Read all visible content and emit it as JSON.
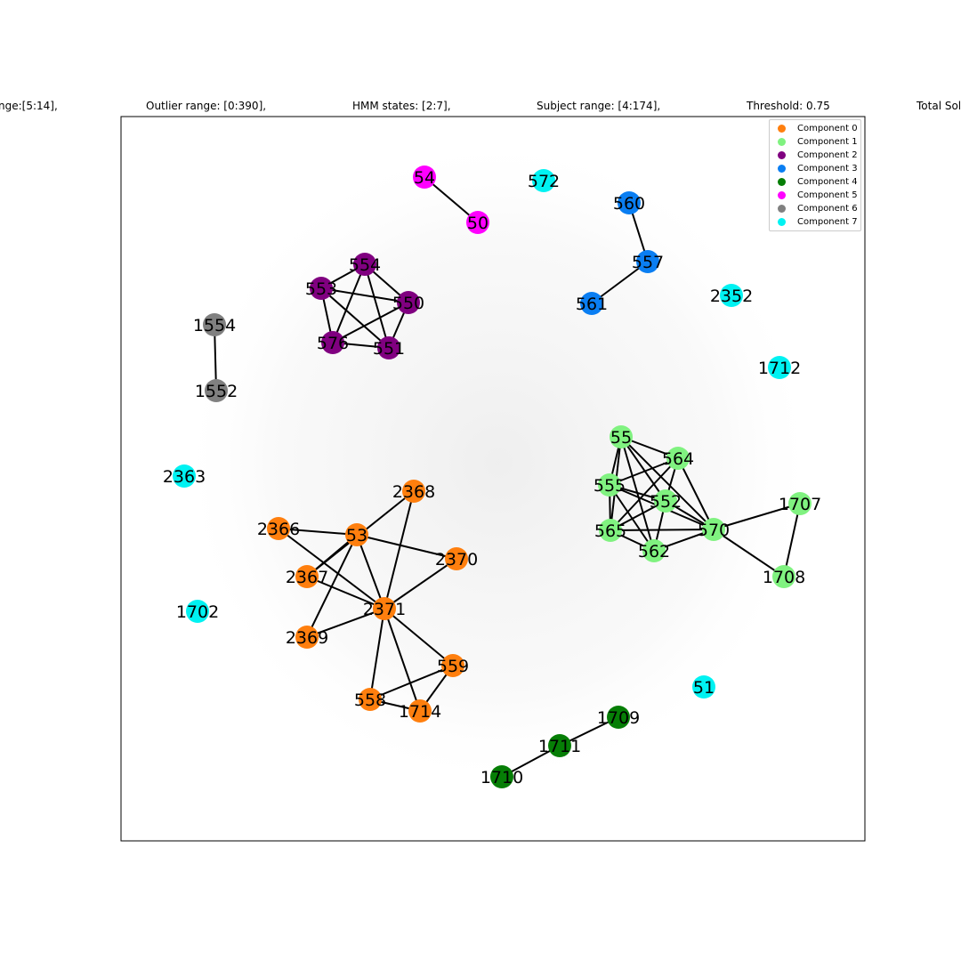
{
  "header": {
    "parts": [
      "nge:[5:14],",
      "Outlier range: [0:390],",
      "HMM states: [2:7],",
      "Subject range: [4:174],",
      "Threshold: 0.75",
      "Total Sol"
    ]
  },
  "legend": [
    {
      "label": "Component 0",
      "color": "#ff7f0e"
    },
    {
      "label": "Component 1",
      "color": "#80f280"
    },
    {
      "label": "Component 2",
      "color": "#800080"
    },
    {
      "label": "Component 3",
      "color": "#0a7ef2"
    },
    {
      "label": "Component 4",
      "color": "#067e06"
    },
    {
      "label": "Component 5",
      "color": "#ff00ff"
    },
    {
      "label": "Component 6",
      "color": "#808080"
    },
    {
      "label": "Component 7",
      "color": "#00f2f2"
    }
  ],
  "graph": {
    "nodes": [
      {
        "id": "54",
        "component": 5
      },
      {
        "id": "50",
        "component": 5
      },
      {
        "id": "572",
        "component": 7
      },
      {
        "id": "560",
        "component": 3
      },
      {
        "id": "557",
        "component": 3
      },
      {
        "id": "561",
        "component": 3
      },
      {
        "id": "2352",
        "component": 7
      },
      {
        "id": "1712",
        "component": 7
      },
      {
        "id": "554",
        "component": 2
      },
      {
        "id": "553",
        "component": 2
      },
      {
        "id": "550",
        "component": 2
      },
      {
        "id": "576",
        "component": 2
      },
      {
        "id": "551",
        "component": 2
      },
      {
        "id": "1554",
        "component": 6
      },
      {
        "id": "1552",
        "component": 6
      },
      {
        "id": "2363",
        "component": 7
      },
      {
        "id": "55",
        "component": 1
      },
      {
        "id": "564",
        "component": 1
      },
      {
        "id": "555",
        "component": 1
      },
      {
        "id": "552",
        "component": 1
      },
      {
        "id": "565",
        "component": 1
      },
      {
        "id": "570",
        "component": 1
      },
      {
        "id": "562",
        "component": 1
      },
      {
        "id": "1707",
        "component": 1
      },
      {
        "id": "1708",
        "component": 1
      },
      {
        "id": "2368",
        "component": 0
      },
      {
        "id": "2366",
        "component": 0
      },
      {
        "id": "53",
        "component": 0
      },
      {
        "id": "2370",
        "component": 0
      },
      {
        "id": "2367",
        "component": 0
      },
      {
        "id": "2371",
        "component": 0
      },
      {
        "id": "2369",
        "component": 0
      },
      {
        "id": "559",
        "component": 0
      },
      {
        "id": "558",
        "component": 0
      },
      {
        "id": "1714",
        "component": 0
      },
      {
        "id": "1702",
        "component": 7
      },
      {
        "id": "51",
        "component": 7
      },
      {
        "id": "1709",
        "component": 4
      },
      {
        "id": "1711",
        "component": 4
      },
      {
        "id": "1710",
        "component": 4
      }
    ],
    "edges": [
      [
        "54",
        "50"
      ],
      [
        "560",
        "557"
      ],
      [
        "557",
        "561"
      ],
      [
        "554",
        "553"
      ],
      [
        "554",
        "550"
      ],
      [
        "554",
        "576"
      ],
      [
        "554",
        "551"
      ],
      [
        "553",
        "550"
      ],
      [
        "553",
        "576"
      ],
      [
        "553",
        "551"
      ],
      [
        "550",
        "576"
      ],
      [
        "550",
        "551"
      ],
      [
        "576",
        "551"
      ],
      [
        "1554",
        "1552"
      ],
      [
        "55",
        "564"
      ],
      [
        "55",
        "555"
      ],
      [
        "55",
        "552"
      ],
      [
        "55",
        "565"
      ],
      [
        "55",
        "562"
      ],
      [
        "55",
        "570"
      ],
      [
        "564",
        "555"
      ],
      [
        "564",
        "552"
      ],
      [
        "564",
        "565"
      ],
      [
        "564",
        "570"
      ],
      [
        "555",
        "552"
      ],
      [
        "555",
        "565"
      ],
      [
        "555",
        "562"
      ],
      [
        "555",
        "570"
      ],
      [
        "552",
        "565"
      ],
      [
        "552",
        "562"
      ],
      [
        "552",
        "570"
      ],
      [
        "565",
        "562"
      ],
      [
        "565",
        "570"
      ],
      [
        "562",
        "570"
      ],
      [
        "570",
        "1707"
      ],
      [
        "570",
        "1708"
      ],
      [
        "1707",
        "1708"
      ],
      [
        "2366",
        "53"
      ],
      [
        "2366",
        "2371"
      ],
      [
        "53",
        "2367"
      ],
      [
        "53",
        "2370"
      ],
      [
        "53",
        "2371"
      ],
      [
        "53",
        "2369"
      ],
      [
        "2368",
        "2371"
      ],
      [
        "2368",
        "2367"
      ],
      [
        "2367",
        "2371"
      ],
      [
        "2370",
        "2371"
      ],
      [
        "2371",
        "2369"
      ],
      [
        "2371",
        "559"
      ],
      [
        "2371",
        "558"
      ],
      [
        "2371",
        "1714"
      ],
      [
        "559",
        "558"
      ],
      [
        "559",
        "1714"
      ],
      [
        "558",
        "1714"
      ],
      [
        "1709",
        "1711"
      ],
      [
        "1711",
        "1710"
      ]
    ]
  }
}
